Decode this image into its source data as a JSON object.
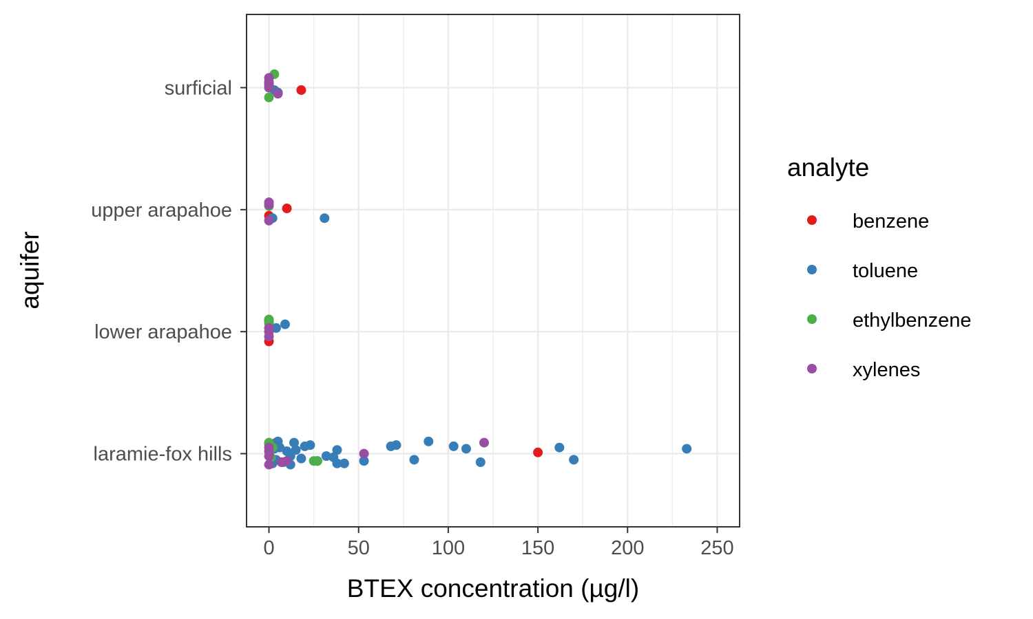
{
  "chart_data": {
    "type": "scatter",
    "xlabel": "BTEX concentration (µg/l)",
    "ylabel": "aquifer",
    "xlim": [
      -12.5,
      262.5
    ],
    "x_ticks": [
      0,
      50,
      100,
      150,
      200,
      250
    ],
    "x_tick_labels": [
      "0",
      "50",
      "100",
      "150",
      "200",
      "250"
    ],
    "categories": [
      "surficial",
      "upper arapahoe",
      "lower arapahoe",
      "laramie-fox hills"
    ],
    "grid": true,
    "legend": {
      "title": "analyte",
      "position": "right"
    },
    "series": [
      {
        "name": "benzene",
        "color": "#E41A1C",
        "points": [
          {
            "x": 18,
            "y": "surficial",
            "jitter": -0.02
          },
          {
            "x": 0,
            "y": "surficial",
            "jitter": 0.04
          },
          {
            "x": 10,
            "y": "upper arapahoe",
            "jitter": 0.01
          },
          {
            "x": 0,
            "y": "upper arapahoe",
            "jitter": -0.05
          },
          {
            "x": 0,
            "y": "lower arapahoe",
            "jitter": -0.08
          },
          {
            "x": 0,
            "y": "lower arapahoe",
            "jitter": 0.09
          },
          {
            "x": 150,
            "y": "laramie-fox hills",
            "jitter": 0.01
          },
          {
            "x": 0,
            "y": "laramie-fox hills",
            "jitter": 0.08
          },
          {
            "x": 4,
            "y": "laramie-fox hills",
            "jitter": 0.09
          }
        ]
      },
      {
        "name": "toluene",
        "color": "#377EB8",
        "points": [
          {
            "x": 3,
            "y": "surficial",
            "jitter": -0.02
          },
          {
            "x": 5,
            "y": "surficial",
            "jitter": -0.04
          },
          {
            "x": 31,
            "y": "upper arapahoe",
            "jitter": -0.07
          },
          {
            "x": 2,
            "y": "upper arapahoe",
            "jitter": -0.07
          },
          {
            "x": 9,
            "y": "lower arapahoe",
            "jitter": 0.06
          },
          {
            "x": 4,
            "y": "lower arapahoe",
            "jitter": 0.03
          },
          {
            "x": 233,
            "y": "laramie-fox hills",
            "jitter": 0.04
          },
          {
            "x": 170,
            "y": "laramie-fox hills",
            "jitter": -0.05
          },
          {
            "x": 162,
            "y": "laramie-fox hills",
            "jitter": 0.05
          },
          {
            "x": 118,
            "y": "laramie-fox hills",
            "jitter": -0.07
          },
          {
            "x": 110,
            "y": "laramie-fox hills",
            "jitter": 0.04
          },
          {
            "x": 103,
            "y": "laramie-fox hills",
            "jitter": 0.06
          },
          {
            "x": 89,
            "y": "laramie-fox hills",
            "jitter": 0.1
          },
          {
            "x": 81,
            "y": "laramie-fox hills",
            "jitter": -0.05
          },
          {
            "x": 71,
            "y": "laramie-fox hills",
            "jitter": 0.07
          },
          {
            "x": 68,
            "y": "laramie-fox hills",
            "jitter": 0.06
          },
          {
            "x": 53,
            "y": "laramie-fox hills",
            "jitter": -0.06
          },
          {
            "x": 42,
            "y": "laramie-fox hills",
            "jitter": -0.08
          },
          {
            "x": 38,
            "y": "laramie-fox hills",
            "jitter": 0.03
          },
          {
            "x": 38,
            "y": "laramie-fox hills",
            "jitter": -0.08
          },
          {
            "x": 36,
            "y": "laramie-fox hills",
            "jitter": -0.03
          },
          {
            "x": 32,
            "y": "laramie-fox hills",
            "jitter": -0.02
          },
          {
            "x": 27,
            "y": "laramie-fox hills",
            "jitter": -0.06
          },
          {
            "x": 23,
            "y": "laramie-fox hills",
            "jitter": 0.07
          },
          {
            "x": 20,
            "y": "laramie-fox hills",
            "jitter": 0.06
          },
          {
            "x": 18,
            "y": "laramie-fox hills",
            "jitter": -0.04
          },
          {
            "x": 15,
            "y": "laramie-fox hills",
            "jitter": 0.03
          },
          {
            "x": 14,
            "y": "laramie-fox hills",
            "jitter": 0.09
          },
          {
            "x": 12,
            "y": "laramie-fox hills",
            "jitter": -0.02
          },
          {
            "x": 12,
            "y": "laramie-fox hills",
            "jitter": -0.09
          },
          {
            "x": 10,
            "y": "laramie-fox hills",
            "jitter": 0.02
          },
          {
            "x": 8,
            "y": "laramie-fox hills",
            "jitter": -0.07
          },
          {
            "x": 6,
            "y": "laramie-fox hills",
            "jitter": 0.05
          },
          {
            "x": 5,
            "y": "laramie-fox hills",
            "jitter": 0.1
          },
          {
            "x": 4,
            "y": "laramie-fox hills",
            "jitter": -0.05
          },
          {
            "x": 3,
            "y": "laramie-fox hills",
            "jitter": 0.04
          },
          {
            "x": 2,
            "y": "laramie-fox hills",
            "jitter": -0.08
          }
        ]
      },
      {
        "name": "ethylbenzene",
        "color": "#4DAF4A",
        "points": [
          {
            "x": 3,
            "y": "surficial",
            "jitter": 0.11
          },
          {
            "x": 0,
            "y": "surficial",
            "jitter": -0.08
          },
          {
            "x": 0,
            "y": "upper arapahoe",
            "jitter": 0.03
          },
          {
            "x": 0,
            "y": "lower arapahoe",
            "jitter": 0.1
          },
          {
            "x": 0,
            "y": "lower arapahoe",
            "jitter": 0.07
          },
          {
            "x": 27,
            "y": "laramie-fox hills",
            "jitter": -0.06
          },
          {
            "x": 25,
            "y": "laramie-fox hills",
            "jitter": -0.06
          },
          {
            "x": 0,
            "y": "laramie-fox hills",
            "jitter": 0.09
          },
          {
            "x": 2,
            "y": "laramie-fox hills",
            "jitter": 0.05
          },
          {
            "x": 1,
            "y": "laramie-fox hills",
            "jitter": -0.03
          }
        ]
      },
      {
        "name": "xylenes",
        "color": "#984EA3",
        "points": [
          {
            "x": 0,
            "y": "surficial",
            "jitter": 0.08
          },
          {
            "x": 0,
            "y": "surficial",
            "jitter": 0.05
          },
          {
            "x": 0,
            "y": "surficial",
            "jitter": 0.02
          },
          {
            "x": 0,
            "y": "surficial",
            "jitter": 0.0
          },
          {
            "x": 5,
            "y": "surficial",
            "jitter": -0.05
          },
          {
            "x": 0,
            "y": "upper arapahoe",
            "jitter": 0.06
          },
          {
            "x": 0,
            "y": "upper arapahoe",
            "jitter": 0.04
          },
          {
            "x": 0,
            "y": "upper arapahoe",
            "jitter": -0.09
          },
          {
            "x": 0,
            "y": "lower arapahoe",
            "jitter": 0.03
          },
          {
            "x": 0,
            "y": "lower arapahoe",
            "jitter": 0.0
          },
          {
            "x": 0,
            "y": "lower arapahoe",
            "jitter": -0.04
          },
          {
            "x": 120,
            "y": "laramie-fox hills",
            "jitter": 0.09
          },
          {
            "x": 53,
            "y": "laramie-fox hills",
            "jitter": 0.0
          },
          {
            "x": 10,
            "y": "laramie-fox hills",
            "jitter": -0.06
          },
          {
            "x": 7,
            "y": "laramie-fox hills",
            "jitter": -0.07
          },
          {
            "x": 0,
            "y": "laramie-fox hills",
            "jitter": 0.05
          },
          {
            "x": 0,
            "y": "laramie-fox hills",
            "jitter": 0.02
          },
          {
            "x": 0,
            "y": "laramie-fox hills",
            "jitter": -0.02
          },
          {
            "x": 0,
            "y": "laramie-fox hills",
            "jitter": -0.09
          }
        ]
      }
    ]
  }
}
